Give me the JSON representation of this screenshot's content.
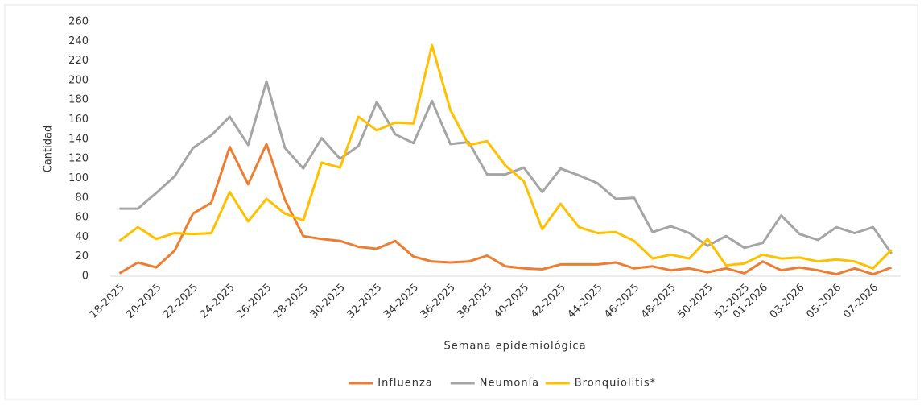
{
  "chart_data": {
    "type": "line",
    "x_label": "Semana epidemiológica",
    "y_label": "Cantidad",
    "categories": [
      "18-2025",
      null,
      "20-2025",
      null,
      "22-2025",
      null,
      "24-2025",
      null,
      "26-2025",
      null,
      "28-2025",
      null,
      "30-2025",
      null,
      "32-2025",
      null,
      "34-2025",
      null,
      "36-2025",
      null,
      "38-2025",
      null,
      "40-2025",
      null,
      "42-2025",
      null,
      "44-2025",
      null,
      "46-2025",
      null,
      "48-2025",
      null,
      "50-2025",
      null,
      "52-2025",
      "01-2026",
      null,
      "03-2026",
      null,
      "05-2026",
      null,
      "07-2026",
      null
    ],
    "series": [
      {
        "name": "Influenza",
        "color": "#ed7d31",
        "values": [
          3,
          14,
          9,
          26,
          64,
          75,
          132,
          94,
          135,
          78,
          41,
          38,
          36,
          30,
          28,
          36,
          20,
          15,
          14,
          15,
          21,
          10,
          8,
          7,
          12,
          12,
          12,
          14,
          8,
          10,
          6,
          8,
          4,
          8,
          3,
          15,
          6,
          9,
          6,
          2,
          8,
          2,
          9
        ]
      },
      {
        "name": "Neumonía",
        "color": "#a5a5a5",
        "values": [
          69,
          69,
          85,
          102,
          131,
          144,
          163,
          134,
          199,
          131,
          110,
          141,
          120,
          133,
          178,
          145,
          136,
          179,
          135,
          137,
          104,
          104,
          111,
          86,
          110,
          103,
          95,
          79,
          80,
          45,
          51,
          44,
          31,
          41,
          29,
          34,
          62,
          43,
          37,
          50,
          44,
          50,
          23
        ]
      },
      {
        "name": "Bronquiolitis*",
        "color": "#ffc000",
        "values": [
          36,
          50,
          38,
          44,
          43,
          44,
          86,
          56,
          79,
          64,
          57,
          116,
          111,
          163,
          149,
          157,
          156,
          236,
          170,
          134,
          138,
          113,
          97,
          48,
          74,
          50,
          44,
          45,
          36,
          18,
          22,
          18,
          38,
          11,
          13,
          22,
          18,
          19,
          15,
          17,
          15,
          8,
          27
        ]
      }
    ],
    "ylim": [
      0,
      260
    ],
    "yticks": [
      0,
      20,
      40,
      60,
      80,
      100,
      120,
      140,
      160,
      180,
      200,
      220,
      240,
      260
    ],
    "grid": false,
    "legend": "bottom"
  }
}
